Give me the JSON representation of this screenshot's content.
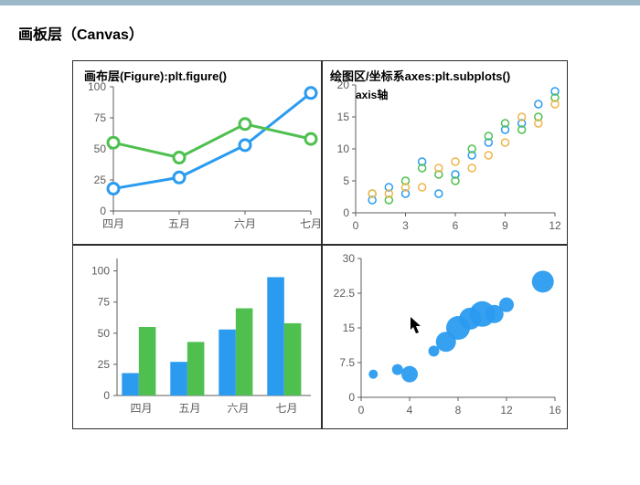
{
  "heading": "画板层（Canvas）",
  "colors": {
    "blue": "#2b9bf0",
    "green": "#4fc04f",
    "orange": "#f0b44b",
    "bubble": "#2b9bf0",
    "axis": "#5c5c5c",
    "tick_text": "#5c5c5c",
    "frame": "#2c2c2c"
  },
  "q1": {
    "title": "画布层(Figure):plt.figure()",
    "type": "line",
    "x_labels": [
      "四月",
      "五月",
      "六月",
      "七月"
    ],
    "y_ticks": [
      0,
      25,
      50,
      75,
      100
    ],
    "ylim": [
      0,
      100
    ],
    "series": [
      {
        "name": "blue_line",
        "color": "#2b9bf0",
        "values": [
          18,
          27,
          53,
          95
        ],
        "marker": "circle",
        "line_width": 3,
        "marker_size": 6
      },
      {
        "name": "green_line",
        "color": "#4fc04f",
        "values": [
          55,
          43,
          70,
          58
        ],
        "marker": "circle",
        "line_width": 3,
        "marker_size": 6
      }
    ],
    "label_fontsize": 12
  },
  "q2": {
    "title": "绘图区/坐标系axes:plt.subplots()",
    "annotation": "axis轴",
    "type": "scatter",
    "xlim": [
      0,
      12
    ],
    "x_ticks": [
      0,
      3,
      6,
      9,
      12
    ],
    "ylim": [
      0,
      20
    ],
    "y_ticks": [
      0,
      5,
      10,
      15,
      20
    ],
    "marker": "open_circle",
    "marker_radius": 4,
    "stroke_width": 1.5,
    "series": [
      {
        "color": "#2b9bf0",
        "points": [
          [
            1,
            2
          ],
          [
            2,
            4
          ],
          [
            3,
            3
          ],
          [
            4,
            8
          ],
          [
            5,
            3
          ],
          [
            6,
            6
          ],
          [
            7,
            9
          ],
          [
            8,
            11
          ],
          [
            9,
            13
          ],
          [
            10,
            14
          ],
          [
            11,
            17
          ],
          [
            12,
            19
          ]
        ]
      },
      {
        "color": "#4fc04f",
        "points": [
          [
            1,
            3
          ],
          [
            2,
            2
          ],
          [
            3,
            5
          ],
          [
            4,
            7
          ],
          [
            5,
            6
          ],
          [
            6,
            5
          ],
          [
            7,
            10
          ],
          [
            8,
            12
          ],
          [
            9,
            14
          ],
          [
            10,
            13
          ],
          [
            11,
            15
          ],
          [
            12,
            18
          ]
        ]
      },
      {
        "color": "#f0b44b",
        "points": [
          [
            1,
            3
          ],
          [
            2,
            3
          ],
          [
            3,
            4
          ],
          [
            4,
            4
          ],
          [
            5,
            7
          ],
          [
            6,
            8
          ],
          [
            7,
            7
          ],
          [
            8,
            9
          ],
          [
            9,
            11
          ],
          [
            10,
            15
          ],
          [
            11,
            14
          ],
          [
            12,
            17
          ]
        ]
      }
    ],
    "label_fontsize": 12
  },
  "q3": {
    "type": "bar",
    "x_labels": [
      "四月",
      "五月",
      "六月",
      "七月"
    ],
    "y_ticks": [
      0,
      25,
      50,
      75,
      100
    ],
    "ylim": [
      0,
      110
    ],
    "bar_width": 0.35,
    "series": [
      {
        "color": "#2b9bf0",
        "values": [
          18,
          27,
          53,
          95
        ]
      },
      {
        "color": "#4fc04f",
        "values": [
          55,
          43,
          70,
          58
        ]
      }
    ],
    "label_fontsize": 12
  },
  "q4": {
    "type": "bubble",
    "xlim": [
      0,
      16
    ],
    "x_ticks": [
      0,
      4,
      8,
      12,
      16
    ],
    "ylim": [
      0,
      30
    ],
    "y_ticks": [
      0,
      7.5,
      15,
      22.5,
      30
    ],
    "color": "#2b9bf0",
    "opacity": 0.95,
    "points": [
      {
        "x": 1,
        "y": 5,
        "r": 5
      },
      {
        "x": 3,
        "y": 6,
        "r": 6
      },
      {
        "x": 4,
        "y": 5,
        "r": 9
      },
      {
        "x": 6,
        "y": 10,
        "r": 6
      },
      {
        "x": 7,
        "y": 12,
        "r": 11
      },
      {
        "x": 8,
        "y": 15,
        "r": 13
      },
      {
        "x": 9,
        "y": 17,
        "r": 12
      },
      {
        "x": 10,
        "y": 18,
        "r": 14
      },
      {
        "x": 11,
        "y": 18,
        "r": 10
      },
      {
        "x": 12,
        "y": 20,
        "r": 8
      },
      {
        "x": 15,
        "y": 25,
        "r": 12
      }
    ],
    "label_fontsize": 12
  }
}
